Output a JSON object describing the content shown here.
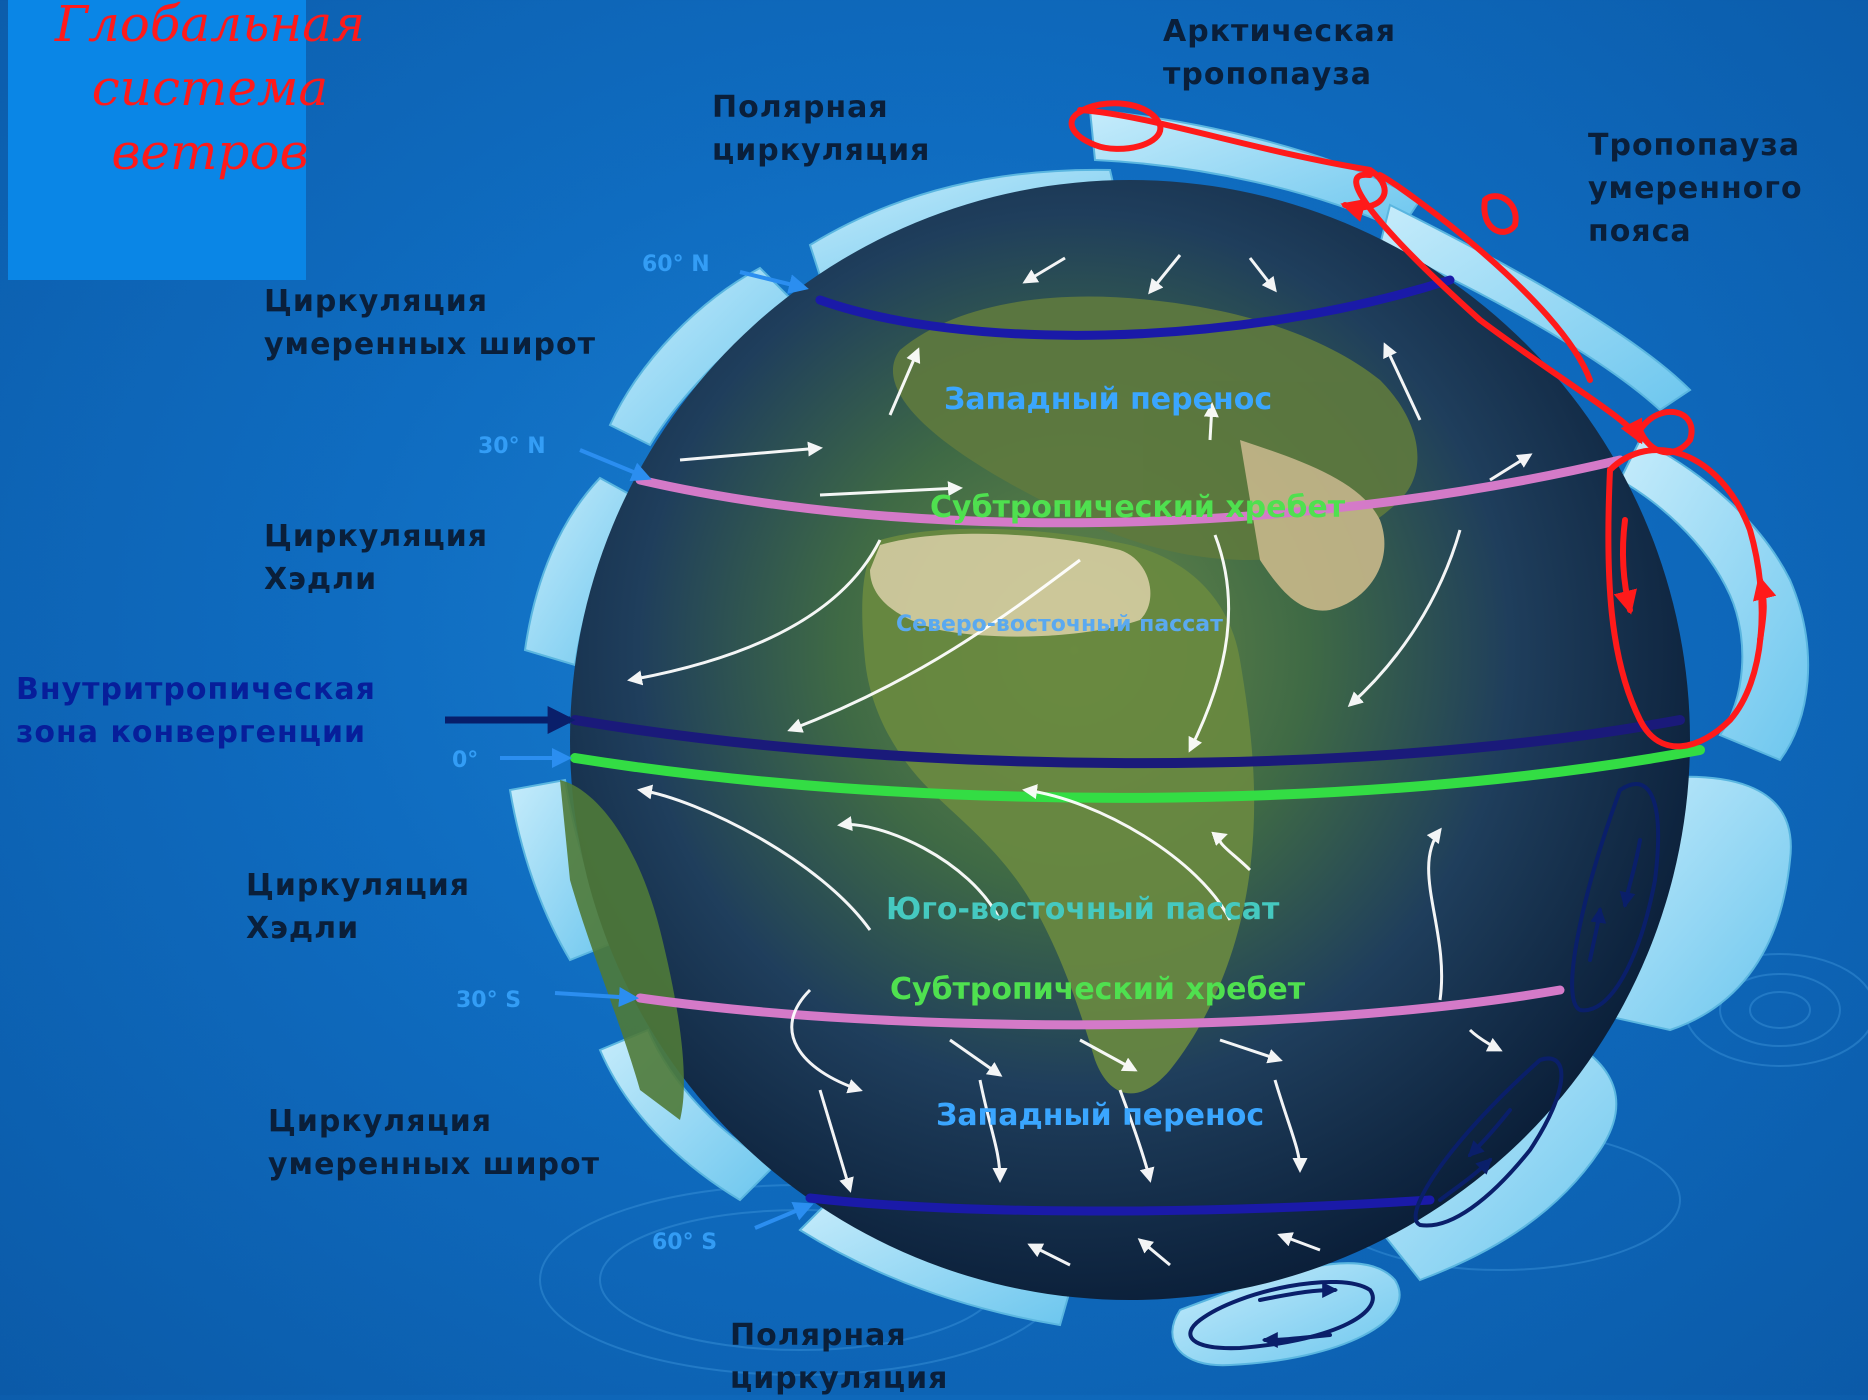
{
  "title": [
    "Глобальная",
    "система",
    "ветров"
  ],
  "labels": {
    "arctic_tropopause": [
      "Арктическая",
      "тропопауза"
    ],
    "polar_circulation_top": [
      "Полярная",
      "циркуляция"
    ],
    "temperate_tropopause": [
      "Тропопауза",
      "умеренного",
      "пояса"
    ],
    "mid_latitude_north": [
      "Циркуляция",
      "умеренных широт"
    ],
    "hadley_north": [
      "Циркуляция",
      "Хэдли"
    ],
    "itcz": [
      "Внутритропическая",
      "зона конвергенции"
    ],
    "hadley_south": [
      "Циркуляция",
      "Хэдли"
    ],
    "mid_latitude_south": [
      "Циркуляция",
      "умеренных широт"
    ],
    "polar_circulation_bottom": [
      "Полярная",
      "циркуляция"
    ]
  },
  "latitudes": {
    "n60": "60° N",
    "n30": "30° N",
    "eq": "0°",
    "s30": "30° S",
    "s60": "60° S"
  },
  "globe_labels": {
    "westerlies_north": "Западный перенос",
    "subtropical_ridge_north": "Субтропический хребет",
    "ne_trade": "Северо-восточный пассат",
    "se_trade": "Юго-восточный пассат",
    "subtropical_ridge_south": "Субтропический хребет",
    "westerlies_south": "Западный перенос"
  },
  "colors": {
    "title": "#ff1a1a",
    "westerlies": "#3aa6ff",
    "subtropical_ridge": "#4fe04f",
    "trade_wind": "#5aa9f0",
    "se_trade": "#45c9c0",
    "circulation_line_red": "#ff1a1a",
    "polar_front": "#1a1aa8",
    "ridge_line": "#d47ac8",
    "equator_line": "#33dd44"
  }
}
